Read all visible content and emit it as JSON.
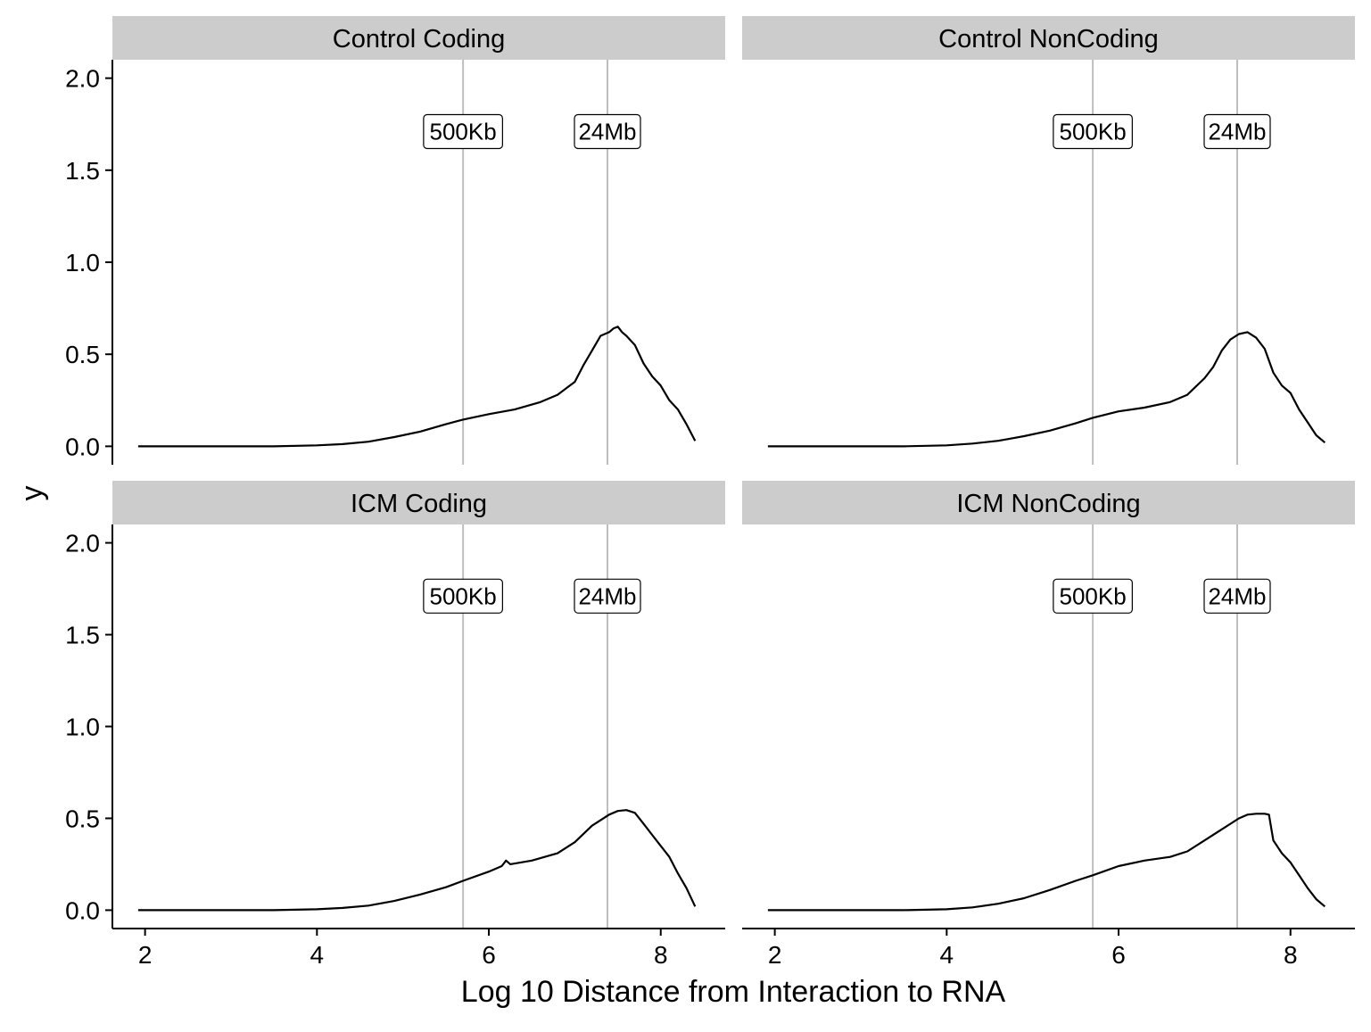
{
  "chart_data": {
    "type": "line",
    "xlabel": "Log 10 Distance from Interaction to RNA",
    "ylabel": "y",
    "xlim": [
      1.62,
      8.75
    ],
    "ylim": [
      -0.1,
      2.1
    ],
    "x_ticks": [
      2,
      4,
      6,
      8
    ],
    "y_ticks": [
      0.0,
      0.5,
      1.0,
      1.5,
      2.0
    ],
    "x_tick_labels": [
      "2",
      "4",
      "6",
      "8"
    ],
    "y_tick_labels": [
      "0.0",
      "0.5",
      "1.0",
      "1.5",
      "2.0"
    ],
    "grid": false,
    "facets": [
      {
        "title": "Control Coding",
        "reference_lines": [
          {
            "x": 5.7,
            "label": "500Kb"
          },
          {
            "x": 7.38,
            "label": "24Mb"
          }
        ],
        "series": [
          {
            "x": [
              1.92,
              2.5,
              3.0,
              3.5,
              4.0,
              4.3,
              4.6,
              4.9,
              5.2,
              5.5,
              5.7,
              6.0,
              6.3,
              6.6,
              6.8,
              7.0,
              7.1,
              7.2,
              7.3,
              7.4,
              7.45,
              7.5,
              7.55,
              7.6,
              7.7,
              7.8,
              7.9,
              8.0,
              8.1,
              8.2,
              8.3,
              8.4
            ],
            "y": [
              0.0,
              0.0,
              0.0,
              0.0,
              0.005,
              0.012,
              0.025,
              0.05,
              0.08,
              0.12,
              0.145,
              0.175,
              0.2,
              0.24,
              0.28,
              0.35,
              0.44,
              0.52,
              0.6,
              0.62,
              0.64,
              0.65,
              0.62,
              0.6,
              0.55,
              0.45,
              0.38,
              0.33,
              0.25,
              0.2,
              0.12,
              0.03
            ]
          }
        ]
      },
      {
        "title": "Control NonCoding",
        "reference_lines": [
          {
            "x": 5.7,
            "label": "500Kb"
          },
          {
            "x": 7.38,
            "label": "24Mb"
          }
        ],
        "series": [
          {
            "x": [
              1.92,
              2.5,
              3.0,
              3.5,
              4.0,
              4.3,
              4.6,
              4.9,
              5.2,
              5.5,
              5.7,
              6.0,
              6.3,
              6.6,
              6.8,
              7.0,
              7.1,
              7.2,
              7.3,
              7.4,
              7.5,
              7.6,
              7.7,
              7.8,
              7.9,
              8.0,
              8.1,
              8.2,
              8.3,
              8.4
            ],
            "y": [
              0.0,
              0.0,
              0.0,
              0.0,
              0.005,
              0.015,
              0.03,
              0.055,
              0.085,
              0.125,
              0.155,
              0.19,
              0.21,
              0.24,
              0.28,
              0.37,
              0.43,
              0.52,
              0.58,
              0.61,
              0.62,
              0.59,
              0.53,
              0.4,
              0.33,
              0.29,
              0.2,
              0.13,
              0.06,
              0.02
            ]
          }
        ]
      },
      {
        "title": "ICM Coding",
        "reference_lines": [
          {
            "x": 5.7,
            "label": "500Kb"
          },
          {
            "x": 7.38,
            "label": "24Mb"
          }
        ],
        "series": [
          {
            "x": [
              1.92,
              2.5,
              3.0,
              3.5,
              4.0,
              4.3,
              4.6,
              4.9,
              5.2,
              5.5,
              5.7,
              6.0,
              6.15,
              6.2,
              6.25,
              6.5,
              6.8,
              7.0,
              7.2,
              7.4,
              7.5,
              7.6,
              7.7,
              7.8,
              7.9,
              8.0,
              8.1,
              8.2,
              8.3,
              8.4
            ],
            "y": [
              0.0,
              0.0,
              0.0,
              0.0,
              0.005,
              0.012,
              0.025,
              0.05,
              0.085,
              0.125,
              0.16,
              0.21,
              0.24,
              0.27,
              0.25,
              0.27,
              0.31,
              0.37,
              0.46,
              0.52,
              0.54,
              0.545,
              0.53,
              0.47,
              0.41,
              0.35,
              0.29,
              0.2,
              0.12,
              0.02
            ]
          }
        ]
      },
      {
        "title": "ICM NonCoding",
        "reference_lines": [
          {
            "x": 5.7,
            "label": "500Kb"
          },
          {
            "x": 7.38,
            "label": "24Mb"
          }
        ],
        "series": [
          {
            "x": [
              1.92,
              2.5,
              3.0,
              3.5,
              4.0,
              4.3,
              4.6,
              4.9,
              5.2,
              5.5,
              5.7,
              6.0,
              6.3,
              6.6,
              6.8,
              7.0,
              7.2,
              7.4,
              7.5,
              7.6,
              7.7,
              7.75,
              7.8,
              7.9,
              8.0,
              8.1,
              8.2,
              8.3,
              8.4
            ],
            "y": [
              0.0,
              0.0,
              0.0,
              0.0,
              0.005,
              0.015,
              0.035,
              0.065,
              0.11,
              0.16,
              0.19,
              0.24,
              0.27,
              0.29,
              0.32,
              0.38,
              0.44,
              0.5,
              0.52,
              0.525,
              0.525,
              0.52,
              0.38,
              0.31,
              0.26,
              0.19,
              0.12,
              0.06,
              0.02
            ]
          }
        ]
      }
    ]
  },
  "colors": {
    "strip_background": "#cccccc",
    "reference_line": "#bebebe",
    "series_line": "#000000",
    "axis": "#000000"
  }
}
